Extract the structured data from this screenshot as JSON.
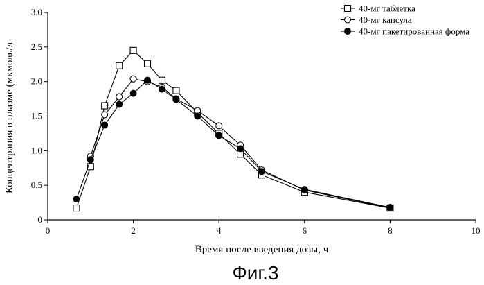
{
  "chart_data": {
    "type": "line",
    "xlabel": "Время после введения дозы, ч",
    "ylabel": "Концентрация в плазме (мкмоль/л",
    "xlim": [
      0,
      10
    ],
    "ylim": [
      0,
      3.0
    ],
    "xticks": [
      "0",
      "2",
      "4",
      "6",
      "8",
      "10"
    ],
    "yticks": [
      "0",
      "0.5",
      "1.0",
      "1.5",
      "2.0",
      "2.5",
      "3.0"
    ],
    "grid": false,
    "legend_position": "top-right",
    "caption": "Фиг.3",
    "series": [
      {
        "name": "40-мг таблетка",
        "marker": "open-square",
        "x": [
          0.67,
          1.0,
          1.33,
          1.67,
          2.0,
          2.33,
          2.67,
          3.0,
          3.5,
          4.0,
          4.5,
          5.0,
          6.0,
          8.0
        ],
        "values": [
          0.17,
          0.77,
          1.65,
          2.23,
          2.45,
          2.26,
          2.02,
          1.87,
          1.55,
          1.25,
          0.95,
          0.65,
          0.4,
          0.17
        ]
      },
      {
        "name": "40-мг капсула",
        "marker": "open-circle",
        "x": [
          1.0,
          1.33,
          1.67,
          2.0,
          2.33,
          2.67,
          3.0,
          3.5,
          4.0,
          4.5,
          5.0,
          6.0,
          8.0
        ],
        "values": [
          0.92,
          1.52,
          1.78,
          2.04,
          2.0,
          1.92,
          1.75,
          1.58,
          1.36,
          1.08,
          0.72,
          0.43,
          0.17
        ]
      },
      {
        "name": "40-мг пакетированная форма",
        "marker": "filled-circle",
        "x": [
          0.67,
          1.0,
          1.33,
          1.67,
          2.0,
          2.33,
          2.67,
          3.0,
          3.5,
          4.0,
          4.5,
          5.0,
          6.0,
          8.0
        ],
        "values": [
          0.3,
          0.87,
          1.37,
          1.67,
          1.83,
          2.02,
          1.89,
          1.74,
          1.5,
          1.22,
          1.03,
          0.7,
          0.44,
          0.18
        ]
      }
    ]
  }
}
